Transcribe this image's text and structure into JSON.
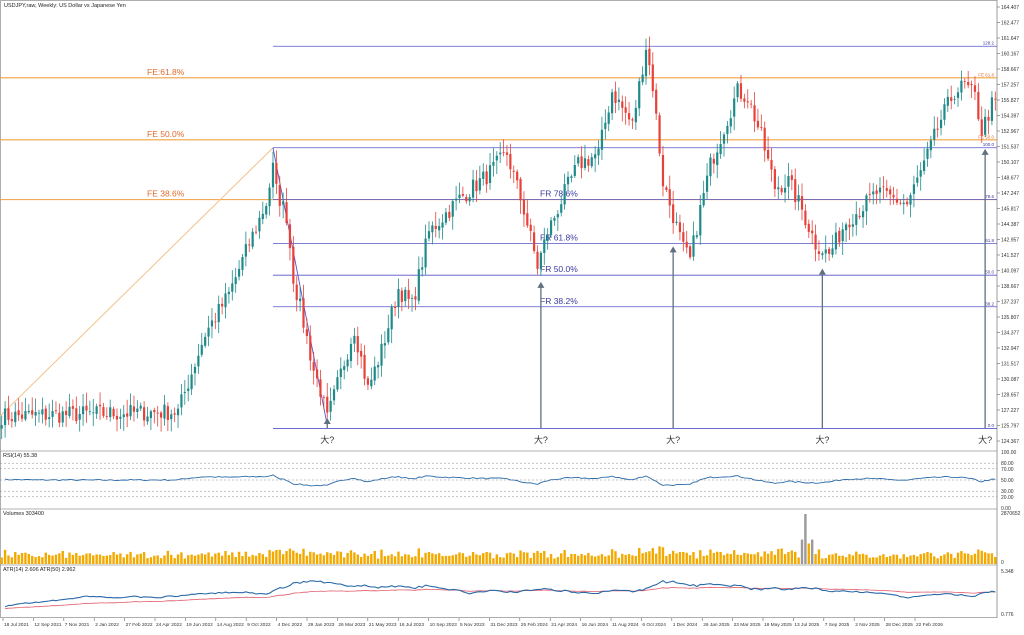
{
  "chart_data": {
    "type": "candlestick",
    "title": "USDJPY,raw, Weekly:  US Dollar vs Japanese Yen",
    "colors": {
      "up": "#1f8a8a",
      "down": "#e8413a",
      "fib_extension": "#f0a040",
      "fib_retracement": "#5555cc",
      "rsi": "#2a6aa8",
      "volume": "#f2a900",
      "volume_highlight": "#9a9a9a",
      "atr14": "#2a6aa8",
      "atr50": "#e05a6a",
      "arrow": "#607080"
    },
    "price_axis": {
      "ylim": [
        125.2,
        165.1
      ],
      "tick_labels": [
        "164.407",
        "162.477",
        "161.647",
        "160.167",
        "158.667",
        "157.257",
        "155.827",
        "154.397",
        "152.967",
        "151.537",
        "150.107",
        "148.677",
        "147.247",
        "145.817",
        "144.387",
        "142.957",
        "141.527",
        "140.097",
        "138.667",
        "137.237",
        "135.807",
        "134.377",
        "132.947",
        "131.517",
        "130.087",
        "128.657",
        "127.227",
        "125.797",
        "124.367"
      ]
    },
    "date_labels": [
      "18 Jul 2021",
      "12 Sep 2021",
      "7 Nov 2021",
      "2 Jan 2022",
      "27 Feb 2022",
      "24 Apr 2022",
      "19 Jun 2022",
      "14 Aug 2022",
      "9 Oct 2022",
      "4 Dec 2022",
      "29 Jan 2023",
      "26 Mar 2023",
      "21 May 2023",
      "16 Jul 2023",
      "10 Sep 2023",
      "5 Nov 2023",
      "31 Dec 2023",
      "25 Feb 2024",
      "21 Apr 2024",
      "16 Jun 2024",
      "11 Aug 2024",
      "6 Oct 2024",
      "1 Dec 2024",
      "26 Jan 2025",
      "23 Mar 2025",
      "18 May 2025",
      "13 Jul 2025",
      "7 Sep 2025",
      "2 Nov 2025",
      "28 Dec 2025",
      "22 Feb 2026"
    ],
    "anchors": [
      {
        "x": 0,
        "y": 128.2
      },
      {
        "x": 52,
        "y": 128.6
      },
      {
        "x": 60,
        "y": 135.5
      },
      {
        "x": 67,
        "y": 139.0
      },
      {
        "x": 73,
        "y": 143.5
      },
      {
        "x": 78,
        "y": 147.1
      },
      {
        "x": 80,
        "y": 150.2
      },
      {
        "x": 81,
        "y": 148.2
      },
      {
        "x": 84,
        "y": 146.0
      },
      {
        "x": 86,
        "y": 140.5
      },
      {
        "x": 89,
        "y": 136.5
      },
      {
        "x": 92,
        "y": 132.3
      },
      {
        "x": 94,
        "y": 130.5
      },
      {
        "x": 96,
        "y": 127.9
      },
      {
        "x": 99,
        "y": 131.0
      },
      {
        "x": 104,
        "y": 136.0
      },
      {
        "x": 108,
        "y": 130.6
      },
      {
        "x": 112,
        "y": 134.0
      },
      {
        "x": 117,
        "y": 139.5
      },
      {
        "x": 121,
        "y": 138.0
      },
      {
        "x": 126,
        "y": 144.5
      },
      {
        "x": 135,
        "y": 147.5
      },
      {
        "x": 143,
        "y": 149.5
      },
      {
        "x": 149,
        "y": 151.5
      },
      {
        "x": 154,
        "y": 146.5
      },
      {
        "x": 158,
        "y": 141.5
      },
      {
        "x": 161,
        "y": 144.5
      },
      {
        "x": 166,
        "y": 148.0
      },
      {
        "x": 170,
        "y": 150.5
      },
      {
        "x": 176,
        "y": 151.5
      },
      {
        "x": 180,
        "y": 157.0
      },
      {
        "x": 186,
        "y": 154.0
      },
      {
        "x": 190,
        "y": 161.0
      },
      {
        "x": 192,
        "y": 157.5
      },
      {
        "x": 195,
        "y": 149.0
      },
      {
        "x": 197,
        "y": 147.0
      },
      {
        "x": 201,
        "y": 143.0
      },
      {
        "x": 203,
        "y": 142.0
      },
      {
        "x": 206,
        "y": 146.5
      },
      {
        "x": 209,
        "y": 150.5
      },
      {
        "x": 212,
        "y": 153.0
      },
      {
        "x": 217,
        "y": 157.0
      },
      {
        "x": 220,
        "y": 156.5
      },
      {
        "x": 224,
        "y": 153.0
      },
      {
        "x": 228,
        "y": 148.5
      },
      {
        "x": 232,
        "y": 149.0
      },
      {
        "x": 236,
        "y": 146.5
      },
      {
        "x": 240,
        "y": 143.5
      },
      {
        "x": 244,
        "y": 142.5
      },
      {
        "x": 249,
        "y": 145.5
      },
      {
        "x": 253,
        "y": 146.5
      },
      {
        "x": 258,
        "y": 148.0
      },
      {
        "x": 263,
        "y": 147.5
      },
      {
        "x": 267,
        "y": 147.0
      },
      {
        "x": 272,
        "y": 150.5
      },
      {
        "x": 277,
        "y": 154.5
      },
      {
        "x": 281,
        "y": 157.0
      },
      {
        "x": 284,
        "y": 157.5
      },
      {
        "x": 287,
        "y": 156.5
      },
      {
        "x": 289,
        "y": 153.5
      },
      {
        "x": 292,
        "y": 155.8
      }
    ],
    "fib_extension": [
      {
        "label": "FE:61.8%",
        "price": 158.2
      },
      {
        "label": "FE 50.0%",
        "price": 152.7
      },
      {
        "label": "FE 38.6%",
        "price": 147.4
      }
    ],
    "fib_retracement": [
      {
        "label": "FR 78.6%",
        "price": 147.4,
        "right_label": "78.6"
      },
      {
        "label": "FR 61.8%",
        "price": 143.5,
        "right_label": "61.8"
      },
      {
        "label": "FR 50.0%",
        "price": 140.7,
        "right_label": "50.0"
      },
      {
        "label": "FR 38.2%",
        "price": 137.9,
        "right_label": "38.2"
      }
    ],
    "fib_other_lines": [
      {
        "price": 161.0,
        "right_label": "128.2"
      },
      {
        "price": 152.0,
        "right_label": "100.0"
      },
      {
        "price": 127.1,
        "right_label": "0.0"
      }
    ],
    "right_level_labels": [
      "FE 61.8",
      "FE 50.0"
    ],
    "arrows": [
      {
        "x": 96,
        "label": "大?"
      },
      {
        "x": 159,
        "label": "大?"
      },
      {
        "x": 198,
        "label": "大?"
      },
      {
        "x": 242,
        "label": "大?"
      },
      {
        "x": 290,
        "label": "大?"
      }
    ],
    "rsi": {
      "label": "RSI(14) 55.38",
      "ylim": [
        0,
        100
      ],
      "tick_labels": [
        "100.00",
        "80.00",
        "70.00",
        "50.00",
        "30.00",
        "20.00",
        "0.00"
      ],
      "levels": [
        80,
        70,
        50,
        30,
        20
      ]
    },
    "volume": {
      "label": "Volumes 303400",
      "ylim": [
        0,
        2870000
      ],
      "tick_labels": [
        "2870652",
        "0"
      ]
    },
    "atr": {
      "label": "ATR(14) 2.606 ATR(50) 2.962",
      "tick_labels": [
        "5.348",
        "0.776"
      ]
    }
  }
}
